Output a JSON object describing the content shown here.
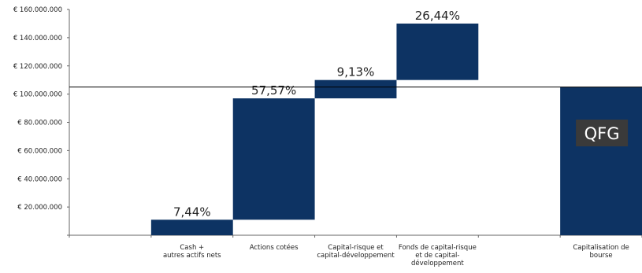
{
  "chart_data": {
    "type": "bar",
    "subtype": "waterfall",
    "categories": [
      "Cash +\nautres actifs nets",
      "Actions cotées",
      "Capital-risque et\ncapital-développement",
      "Fonds de capital-risque\net de capital-\ndéveloppement",
      "Capitalisation de\nbourse"
    ],
    "segments": [
      {
        "start": 0,
        "end": 11000000,
        "label": "7,44%"
      },
      {
        "start": 11000000,
        "end": 97000000,
        "label": "57,57%"
      },
      {
        "start": 97000000,
        "end": 110000000,
        "label": "9,13%"
      },
      {
        "start": 110000000,
        "end": 150000000,
        "label": "26,44%"
      },
      {
        "start": 0,
        "end": 105000000,
        "label": ""
      }
    ],
    "badge": "QFG",
    "reference_line": 105000000,
    "ylim": [
      0,
      160000000
    ],
    "yticks": [
      {
        "value": 0,
        "label": ""
      },
      {
        "value": 20000000,
        "label": "€ 20.000.000"
      },
      {
        "value": 40000000,
        "label": "€ 40.000.000"
      },
      {
        "value": 60000000,
        "label": "€ 60.000.000"
      },
      {
        "value": 80000000,
        "label": "€ 80.000.000"
      },
      {
        "value": 100000000,
        "label": "€ 100.000.000"
      },
      {
        "value": 120000000,
        "label": "€ 120.000.000"
      },
      {
        "value": 140000000,
        "label": "€ 140.000.000"
      },
      {
        "value": 160000000,
        "label": "€ 160.000.000"
      }
    ],
    "title": "",
    "xlabel": "",
    "ylabel": "",
    "grid": false,
    "colors": {
      "bar": "#0d3363",
      "badge": "#3a3a3a",
      "axis": "#666666",
      "line": "#000000"
    }
  }
}
